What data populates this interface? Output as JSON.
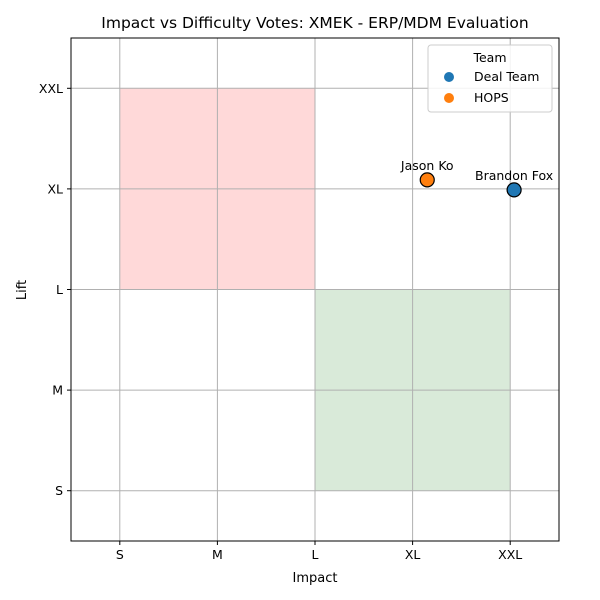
{
  "chart_data": {
    "type": "scatter",
    "title": "Impact vs Difficulty Votes: XMEK - ERP/MDM Evaluation",
    "xlabel": "Impact",
    "ylabel": "Lift",
    "x_ticks": [
      "S",
      "M",
      "L",
      "XL",
      "XXL"
    ],
    "y_ticks": [
      "S",
      "M",
      "L",
      "XL",
      "XXL"
    ],
    "x_scale_values": [
      1,
      2,
      3,
      4,
      5
    ],
    "y_scale_values": [
      1,
      2,
      3,
      4,
      5
    ],
    "xlim": [
      0.5,
      5.5
    ],
    "ylim": [
      0.5,
      5.5
    ],
    "grid": true,
    "regions": [
      {
        "x_range": [
          1,
          3
        ],
        "y_range": [
          3,
          5
        ],
        "color": "#ffd9d9"
      },
      {
        "x_range": [
          3,
          5
        ],
        "y_range": [
          1,
          3
        ],
        "color": "#d9ead9"
      }
    ],
    "legend": {
      "title": "Team",
      "position": "top-right",
      "entries": [
        {
          "label": "Deal Team",
          "color": "#1f77b4"
        },
        {
          "label": "HOPS",
          "color": "#ff7f0e"
        }
      ]
    },
    "points": [
      {
        "label": "Jason Ko",
        "x": 4.15,
        "y": 4.09,
        "team": "HOPS",
        "color": "#ff7f0e"
      },
      {
        "label": "Brandon Fox",
        "x": 5.04,
        "y": 3.99,
        "team": "Deal Team",
        "color": "#1f77b4"
      }
    ]
  }
}
